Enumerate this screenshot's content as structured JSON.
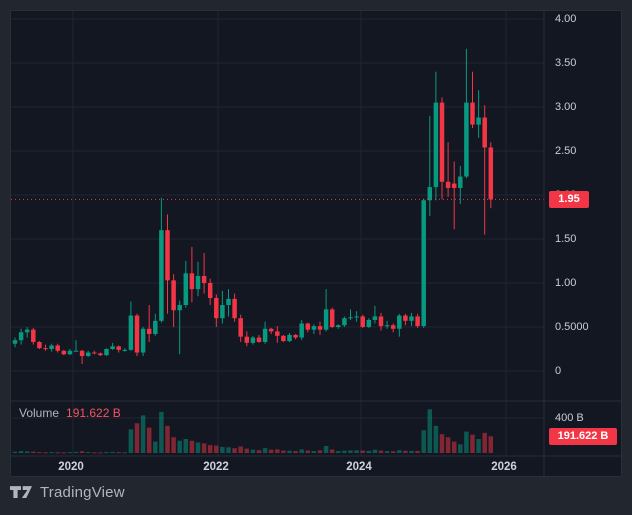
{
  "legend": {
    "volume_label": "Volume",
    "volume_value": "191.622 B"
  },
  "price_axis": {
    "ticks": [
      {
        "label": "4.00",
        "value": 4.0
      },
      {
        "label": "3.50",
        "value": 3.5
      },
      {
        "label": "3.00",
        "value": 3.0
      },
      {
        "label": "2.50",
        "value": 2.5
      },
      {
        "label": "2.00",
        "value": 2.0
      },
      {
        "label": "1.50",
        "value": 1.5
      },
      {
        "label": "1.00",
        "value": 1.0
      },
      {
        "label": "0.5000",
        "value": 0.5
      },
      {
        "label": "0",
        "value": 0.0
      }
    ],
    "last_price": {
      "label": "1.95",
      "value": 1.95
    }
  },
  "volume_axis": {
    "tick": {
      "label": "400 B",
      "value": 400
    },
    "last_value": {
      "label": "191.622 B",
      "value": 191.622
    }
  },
  "time_axis": {
    "ticks": [
      {
        "label": "2020"
      },
      {
        "label": "2022"
      },
      {
        "label": "2024"
      },
      {
        "label": "2026"
      }
    ]
  },
  "footer": {
    "brand": "TradingView"
  },
  "colors": {
    "up": "#089981",
    "down": "#f23645",
    "grid": "#1f2433",
    "separator": "#2a2e39",
    "last_price_line": "#f23645"
  },
  "chart_data": {
    "type": "candlestick",
    "interval": "monthly",
    "price_range": [
      0,
      4.0
    ],
    "volume_unit": "B",
    "volume_axis_max": 600,
    "legend_volume": 191.622,
    "last_price": 1.95,
    "grid": true,
    "candles": [
      {
        "t": "2019-04",
        "o": 0.31,
        "h": 0.38,
        "l": 0.27,
        "c": 0.35,
        "v": 14
      },
      {
        "t": "2019-05",
        "o": 0.35,
        "h": 0.48,
        "l": 0.3,
        "c": 0.44,
        "v": 22
      },
      {
        "t": "2019-06",
        "o": 0.44,
        "h": 0.5,
        "l": 0.38,
        "c": 0.47,
        "v": 18
      },
      {
        "t": "2019-07",
        "o": 0.47,
        "h": 0.49,
        "l": 0.3,
        "c": 0.33,
        "v": 16
      },
      {
        "t": "2019-08",
        "o": 0.33,
        "h": 0.34,
        "l": 0.25,
        "c": 0.26,
        "v": 10
      },
      {
        "t": "2019-09",
        "o": 0.26,
        "h": 0.3,
        "l": 0.23,
        "c": 0.25,
        "v": 8
      },
      {
        "t": "2019-10",
        "o": 0.25,
        "h": 0.31,
        "l": 0.22,
        "c": 0.29,
        "v": 10
      },
      {
        "t": "2019-11",
        "o": 0.29,
        "h": 0.31,
        "l": 0.21,
        "c": 0.23,
        "v": 8
      },
      {
        "t": "2019-12",
        "o": 0.23,
        "h": 0.24,
        "l": 0.18,
        "c": 0.19,
        "v": 7
      },
      {
        "t": "2020-01",
        "o": 0.19,
        "h": 0.25,
        "l": 0.18,
        "c": 0.23,
        "v": 10
      },
      {
        "t": "2020-02",
        "o": 0.23,
        "h": 0.35,
        "l": 0.22,
        "c": 0.23,
        "v": 12
      },
      {
        "t": "2020-03",
        "o": 0.23,
        "h": 0.24,
        "l": 0.08,
        "c": 0.17,
        "v": 20
      },
      {
        "t": "2020-04",
        "o": 0.17,
        "h": 0.23,
        "l": 0.16,
        "c": 0.21,
        "v": 11
      },
      {
        "t": "2020-05",
        "o": 0.21,
        "h": 0.23,
        "l": 0.19,
        "c": 0.2,
        "v": 8
      },
      {
        "t": "2020-06",
        "o": 0.2,
        "h": 0.21,
        "l": 0.17,
        "c": 0.18,
        "v": 7
      },
      {
        "t": "2020-07",
        "o": 0.18,
        "h": 0.26,
        "l": 0.17,
        "c": 0.25,
        "v": 10
      },
      {
        "t": "2020-08",
        "o": 0.25,
        "h": 0.32,
        "l": 0.24,
        "c": 0.28,
        "v": 13
      },
      {
        "t": "2020-09",
        "o": 0.28,
        "h": 0.29,
        "l": 0.21,
        "c": 0.24,
        "v": 10
      },
      {
        "t": "2020-10",
        "o": 0.24,
        "h": 0.26,
        "l": 0.22,
        "c": 0.24,
        "v": 8
      },
      {
        "t": "2020-11",
        "o": 0.24,
        "h": 0.79,
        "l": 0.23,
        "c": 0.63,
        "v": 270
      },
      {
        "t": "2020-12",
        "o": 0.63,
        "h": 0.65,
        "l": 0.17,
        "c": 0.21,
        "v": 340
      },
      {
        "t": "2021-01",
        "o": 0.21,
        "h": 0.5,
        "l": 0.17,
        "c": 0.48,
        "v": 430
      },
      {
        "t": "2021-02",
        "o": 0.48,
        "h": 0.75,
        "l": 0.33,
        "c": 0.42,
        "v": 290
      },
      {
        "t": "2021-03",
        "o": 0.42,
        "h": 0.65,
        "l": 0.4,
        "c": 0.57,
        "v": 130
      },
      {
        "t": "2021-04",
        "o": 0.57,
        "h": 1.97,
        "l": 0.55,
        "c": 1.6,
        "v": 470
      },
      {
        "t": "2021-05",
        "o": 1.6,
        "h": 1.78,
        "l": 0.65,
        "c": 1.03,
        "v": 310
      },
      {
        "t": "2021-06",
        "o": 1.03,
        "h": 1.1,
        "l": 0.5,
        "c": 0.69,
        "v": 180
      },
      {
        "t": "2021-07",
        "o": 0.69,
        "h": 0.8,
        "l": 0.19,
        "c": 0.75,
        "v": 140
      },
      {
        "t": "2021-08",
        "o": 0.75,
        "h": 1.25,
        "l": 0.72,
        "c": 1.11,
        "v": 160
      },
      {
        "t": "2021-09",
        "o": 1.11,
        "h": 1.41,
        "l": 0.78,
        "c": 0.93,
        "v": 140
      },
      {
        "t": "2021-10",
        "o": 0.93,
        "h": 1.24,
        "l": 0.85,
        "c": 1.08,
        "v": 120
      },
      {
        "t": "2021-11",
        "o": 1.08,
        "h": 1.34,
        "l": 0.88,
        "c": 1.0,
        "v": 110
      },
      {
        "t": "2021-12",
        "o": 1.0,
        "h": 1.05,
        "l": 0.75,
        "c": 0.83,
        "v": 90
      },
      {
        "t": "2022-01",
        "o": 0.83,
        "h": 0.87,
        "l": 0.5,
        "c": 0.6,
        "v": 85
      },
      {
        "t": "2022-02",
        "o": 0.6,
        "h": 0.91,
        "l": 0.54,
        "c": 0.75,
        "v": 70
      },
      {
        "t": "2022-03",
        "o": 0.75,
        "h": 0.93,
        "l": 0.62,
        "c": 0.82,
        "v": 65
      },
      {
        "t": "2022-04",
        "o": 0.82,
        "h": 0.88,
        "l": 0.56,
        "c": 0.6,
        "v": 55
      },
      {
        "t": "2022-05",
        "o": 0.6,
        "h": 0.64,
        "l": 0.33,
        "c": 0.39,
        "v": 75
      },
      {
        "t": "2022-06",
        "o": 0.39,
        "h": 0.45,
        "l": 0.28,
        "c": 0.32,
        "v": 50
      },
      {
        "t": "2022-07",
        "o": 0.32,
        "h": 0.4,
        "l": 0.3,
        "c": 0.38,
        "v": 38
      },
      {
        "t": "2022-08",
        "o": 0.38,
        "h": 0.41,
        "l": 0.32,
        "c": 0.33,
        "v": 32
      },
      {
        "t": "2022-09",
        "o": 0.33,
        "h": 0.56,
        "l": 0.31,
        "c": 0.48,
        "v": 55
      },
      {
        "t": "2022-10",
        "o": 0.48,
        "h": 0.49,
        "l": 0.42,
        "c": 0.45,
        "v": 38
      },
      {
        "t": "2022-11",
        "o": 0.45,
        "h": 0.51,
        "l": 0.32,
        "c": 0.4,
        "v": 42
      },
      {
        "t": "2022-12",
        "o": 0.4,
        "h": 0.41,
        "l": 0.33,
        "c": 0.34,
        "v": 28
      },
      {
        "t": "2023-01",
        "o": 0.34,
        "h": 0.43,
        "l": 0.33,
        "c": 0.41,
        "v": 26
      },
      {
        "t": "2023-02",
        "o": 0.41,
        "h": 0.42,
        "l": 0.36,
        "c": 0.38,
        "v": 22
      },
      {
        "t": "2023-03",
        "o": 0.38,
        "h": 0.58,
        "l": 0.35,
        "c": 0.54,
        "v": 40
      },
      {
        "t": "2023-04",
        "o": 0.54,
        "h": 0.55,
        "l": 0.44,
        "c": 0.47,
        "v": 28
      },
      {
        "t": "2023-05",
        "o": 0.47,
        "h": 0.53,
        "l": 0.42,
        "c": 0.51,
        "v": 22
      },
      {
        "t": "2023-06",
        "o": 0.51,
        "h": 0.56,
        "l": 0.41,
        "c": 0.47,
        "v": 30
      },
      {
        "t": "2023-07",
        "o": 0.47,
        "h": 0.93,
        "l": 0.45,
        "c": 0.7,
        "v": 80
      },
      {
        "t": "2023-08",
        "o": 0.7,
        "h": 0.72,
        "l": 0.49,
        "c": 0.5,
        "v": 40
      },
      {
        "t": "2023-09",
        "o": 0.5,
        "h": 0.53,
        "l": 0.48,
        "c": 0.52,
        "v": 22
      },
      {
        "t": "2023-10",
        "o": 0.52,
        "h": 0.62,
        "l": 0.5,
        "c": 0.6,
        "v": 26
      },
      {
        "t": "2023-11",
        "o": 0.6,
        "h": 0.7,
        "l": 0.58,
        "c": 0.61,
        "v": 30
      },
      {
        "t": "2023-12",
        "o": 0.61,
        "h": 0.68,
        "l": 0.56,
        "c": 0.62,
        "v": 30
      },
      {
        "t": "2024-01",
        "o": 0.62,
        "h": 0.64,
        "l": 0.49,
        "c": 0.5,
        "v": 28
      },
      {
        "t": "2024-02",
        "o": 0.5,
        "h": 0.6,
        "l": 0.49,
        "c": 0.58,
        "v": 25
      },
      {
        "t": "2024-03",
        "o": 0.58,
        "h": 0.74,
        "l": 0.54,
        "c": 0.62,
        "v": 38
      },
      {
        "t": "2024-04",
        "o": 0.62,
        "h": 0.66,
        "l": 0.46,
        "c": 0.51,
        "v": 28
      },
      {
        "t": "2024-05",
        "o": 0.51,
        "h": 0.57,
        "l": 0.48,
        "c": 0.52,
        "v": 22
      },
      {
        "t": "2024-06",
        "o": 0.52,
        "h": 0.54,
        "l": 0.44,
        "c": 0.48,
        "v": 20
      },
      {
        "t": "2024-07",
        "o": 0.48,
        "h": 0.65,
        "l": 0.39,
        "c": 0.63,
        "v": 32
      },
      {
        "t": "2024-08",
        "o": 0.63,
        "h": 0.65,
        "l": 0.52,
        "c": 0.57,
        "v": 26
      },
      {
        "t": "2024-09",
        "o": 0.57,
        "h": 0.66,
        "l": 0.51,
        "c": 0.62,
        "v": 24
      },
      {
        "t": "2024-10",
        "o": 0.62,
        "h": 0.65,
        "l": 0.49,
        "c": 0.51,
        "v": 24
      },
      {
        "t": "2024-11",
        "o": 0.51,
        "h": 1.96,
        "l": 0.49,
        "c": 1.94,
        "v": 260
      },
      {
        "t": "2024-12",
        "o": 1.94,
        "h": 2.9,
        "l": 1.76,
        "c": 2.09,
        "v": 500
      },
      {
        "t": "2025-01",
        "o": 2.09,
        "h": 3.4,
        "l": 1.94,
        "c": 3.05,
        "v": 310
      },
      {
        "t": "2025-02",
        "o": 3.05,
        "h": 3.11,
        "l": 1.95,
        "c": 2.15,
        "v": 215
      },
      {
        "t": "2025-03",
        "o": 2.15,
        "h": 2.6,
        "l": 1.98,
        "c": 2.08,
        "v": 180
      },
      {
        "t": "2025-04",
        "o": 2.13,
        "h": 2.38,
        "l": 1.61,
        "c": 2.08,
        "v": 130
      },
      {
        "t": "2025-05",
        "o": 2.08,
        "h": 2.33,
        "l": 1.9,
        "c": 2.21,
        "v": 100
      },
      {
        "t": "2025-06",
        "o": 2.21,
        "h": 3.66,
        "l": 2.19,
        "c": 3.05,
        "v": 245
      },
      {
        "t": "2025-07",
        "o": 3.05,
        "h": 3.4,
        "l": 2.76,
        "c": 2.8,
        "v": 210
      },
      {
        "t": "2025-08",
        "o": 2.8,
        "h": 3.19,
        "l": 2.65,
        "c": 2.88,
        "v": 160
      },
      {
        "t": "2025-09",
        "o": 2.88,
        "h": 3.02,
        "l": 1.55,
        "c": 2.54,
        "v": 230
      },
      {
        "t": "2025-10",
        "o": 2.54,
        "h": 2.6,
        "l": 1.85,
        "c": 1.95,
        "v": 191.622
      }
    ]
  }
}
